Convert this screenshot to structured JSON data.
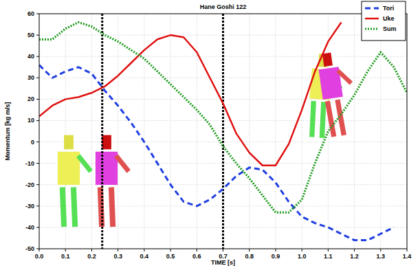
{
  "chart_data": {
    "type": "line",
    "title": "Hane Goshi 122",
    "x_label": "TIME [s]",
    "y_label": "Momentum [kg m/s]",
    "x": [
      0,
      0.05,
      0.1,
      0.15,
      0.2,
      0.25,
      0.3,
      0.35,
      0.4,
      0.45,
      0.5,
      0.55,
      0.6,
      0.65,
      0.7,
      0.75,
      0.8,
      0.85,
      0.9,
      0.95,
      1.0,
      1.05,
      1.1,
      1.15,
      1.2,
      1.25,
      1.3,
      1.35,
      1.4
    ],
    "series": [
      {
        "name": "Tori",
        "color": "#1f3fe0",
        "line_style": "dashed",
        "values": [
          36,
          30,
          33,
          35,
          32,
          24,
          17,
          9,
          0,
          -10,
          -20,
          -28,
          -30,
          -27,
          -22,
          -16,
          -12,
          -13,
          -19,
          -28,
          -35,
          -38,
          -40,
          -43,
          -46,
          -46,
          -43,
          -40,
          null
        ]
      },
      {
        "name": "Uke",
        "color": "#e01010",
        "line_style": "solid",
        "values": [
          12,
          17,
          20,
          21,
          23,
          26,
          31,
          37,
          43,
          48,
          50,
          49,
          42,
          30,
          18,
          4,
          -5,
          -11,
          -11,
          -1,
          15,
          33,
          47,
          56,
          null,
          null,
          null,
          null,
          null
        ]
      },
      {
        "name": "Sum",
        "color": "#1e9a1e",
        "line_style": "dotted",
        "values": [
          48,
          48,
          53,
          56,
          54,
          50,
          47,
          43,
          39,
          33,
          27,
          21,
          15,
          8,
          -2,
          -10,
          -17,
          -25,
          -33,
          -33,
          -27,
          -10,
          5,
          13,
          22,
          33,
          42,
          35,
          23
        ]
      }
    ],
    "vertical_lines": [
      0.24,
      0.7
    ],
    "xlim": [
      0,
      1.4
    ],
    "xticks": [
      {
        "value": 0,
        "label": "0.0"
      },
      {
        "value": 0.1,
        "label": "0.1"
      },
      {
        "value": 0.2,
        "label": "0.2"
      },
      {
        "value": 0.3,
        "label": "0.3"
      },
      {
        "value": 0.4,
        "label": "0.4"
      },
      {
        "value": 0.5,
        "label": "0.5"
      },
      {
        "value": 0.6,
        "label": "0.6"
      },
      {
        "value": 0.7,
        "label": "0.7"
      },
      {
        "value": 0.8,
        "label": "0.8"
      },
      {
        "value": 0.9,
        "label": "0.9"
      },
      {
        "value": 1.0,
        "label": "1.0"
      },
      {
        "value": 1.1,
        "label": "1.1"
      },
      {
        "value": 1.2,
        "label": "1.2"
      },
      {
        "value": 1.3,
        "label": "1.3"
      },
      {
        "value": 1.4,
        "label": "1.4"
      }
    ],
    "ylim": [
      -50,
      60
    ],
    "yticks": [
      -50,
      -40,
      -30,
      -20,
      -10,
      0,
      10,
      20,
      30,
      40,
      50,
      60
    ],
    "grid": true,
    "legend": "upper right"
  }
}
